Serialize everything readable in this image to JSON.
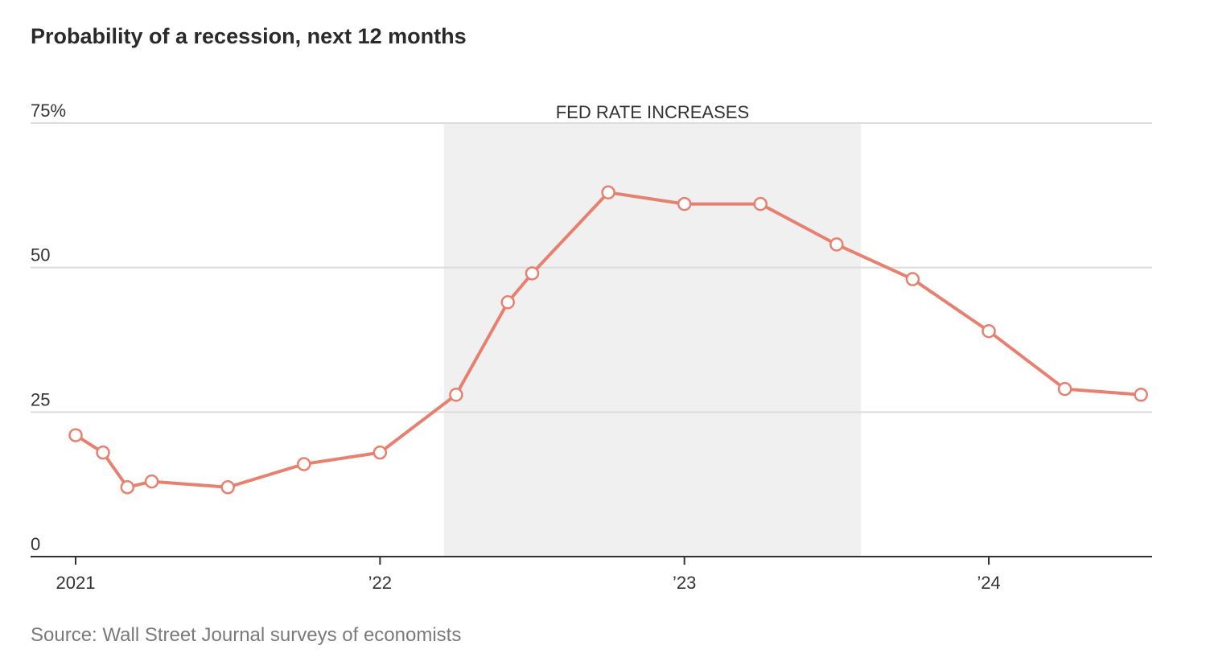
{
  "title": "Probability of a recession, next 12 months",
  "source": "Source: Wall Street Journal surveys of economists",
  "colors": {
    "line": "#e8806f",
    "band": "#eff0ef",
    "grid": "#dcdcdc",
    "axis": "#333333"
  },
  "chart_data": {
    "type": "line",
    "title": "Probability of a recession, next 12 months",
    "xlabel": "",
    "ylabel": "",
    "ylim": [
      0,
      75
    ],
    "xlim": [
      2021.0,
      2024.5
    ],
    "grid": true,
    "y_ticks": [
      {
        "value": 0,
        "label": "0"
      },
      {
        "value": 25,
        "label": "25"
      },
      {
        "value": 50,
        "label": "50"
      },
      {
        "value": 75,
        "label": "75%"
      }
    ],
    "x_ticks": [
      {
        "value": 2021,
        "label": "2021"
      },
      {
        "value": 2022,
        "label": "’22"
      },
      {
        "value": 2023,
        "label": "’23"
      },
      {
        "value": 2024,
        "label": "’24"
      }
    ],
    "shaded_region": {
      "label": "FED RATE INCREASES",
      "x_start": 2022.21,
      "x_end": 2023.58
    },
    "series": [
      {
        "x": [
          2021.0,
          2021.09,
          2021.17,
          2021.25,
          2021.5,
          2021.75,
          2022.0,
          2022.25,
          2022.42,
          2022.5,
          2022.75,
          2023.0,
          2023.25,
          2023.5,
          2023.75,
          2024.0,
          2024.25,
          2024.5
        ],
        "values": [
          21,
          18,
          12,
          13,
          12,
          16,
          18,
          28,
          44,
          49,
          63,
          61,
          61,
          54,
          48,
          39,
          29,
          28
        ]
      }
    ]
  }
}
